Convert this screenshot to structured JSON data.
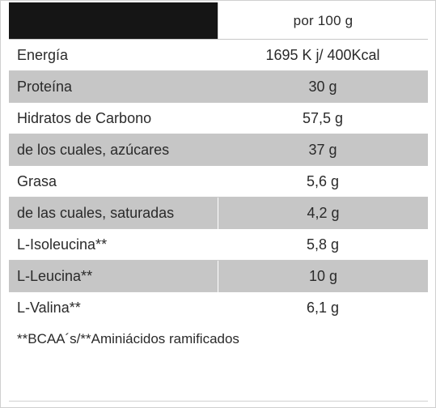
{
  "header": {
    "column_label": "por 100 g"
  },
  "rows": [
    {
      "label": "Energía",
      "value": "1695 K j/ 400Kcal"
    },
    {
      "label": "Proteína",
      "value": "30 g"
    },
    {
      "label": "Hidratos de Carbono",
      "value": "57,5 g"
    },
    {
      "label": "de los cuales, azúcares",
      "value": "37 g"
    },
    {
      "label": "Grasa",
      "value": "5,6 g"
    },
    {
      "label": "de las cuales, saturadas",
      "value": "4,2 g"
    },
    {
      "label": "L-Isoleucina**",
      "value": "5,8 g"
    },
    {
      "label": "L-Leucina**",
      "value": "10 g"
    },
    {
      "label": "L-Valina**",
      "value": "6,1 g"
    }
  ],
  "footnote": "**BCAA´s/**Aminiácidos ramificados",
  "colors": {
    "header_bar": "#151515",
    "row_shade": "#c6c6c6",
    "text": "#2a2a2a"
  }
}
